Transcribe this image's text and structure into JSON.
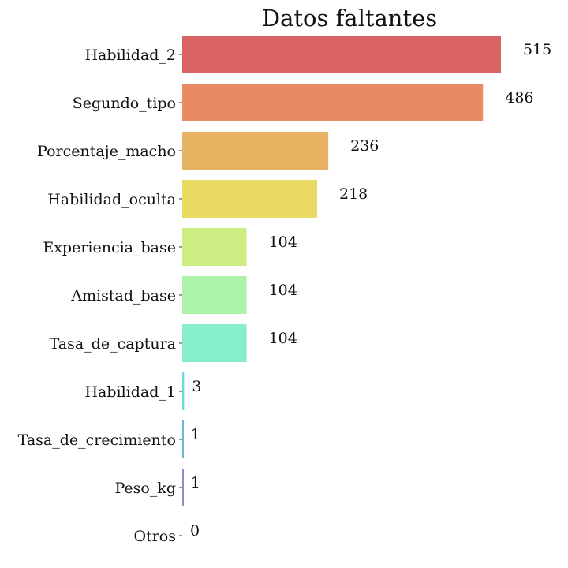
{
  "chart_data": {
    "type": "bar",
    "orientation": "horizontal",
    "title": "Datos faltantes",
    "xlabel": "",
    "ylabel": "",
    "grid": false,
    "categories": [
      "Habilidad_2",
      "Segundo_tipo",
      "Porcentaje_macho",
      "Habilidad_oculta",
      "Experiencia_base",
      "Amistad_base",
      "Tasa_de_captura",
      "Habilidad_1",
      "Tasa_de_crecimiento",
      "Peso_kg",
      "Otros"
    ],
    "values": [
      515,
      486,
      236,
      218,
      104,
      104,
      104,
      3,
      1,
      1,
      0
    ],
    "colors": [
      "#d96262",
      "#ea8a65",
      "#e8b363",
      "#e8da62",
      "#cbed82",
      "#adf4aa",
      "#86eecb",
      "#72d6de",
      "#6cb3dc",
      "#8a8ccc",
      "#9b7fc4"
    ],
    "xlim": [
      0,
      515
    ]
  }
}
